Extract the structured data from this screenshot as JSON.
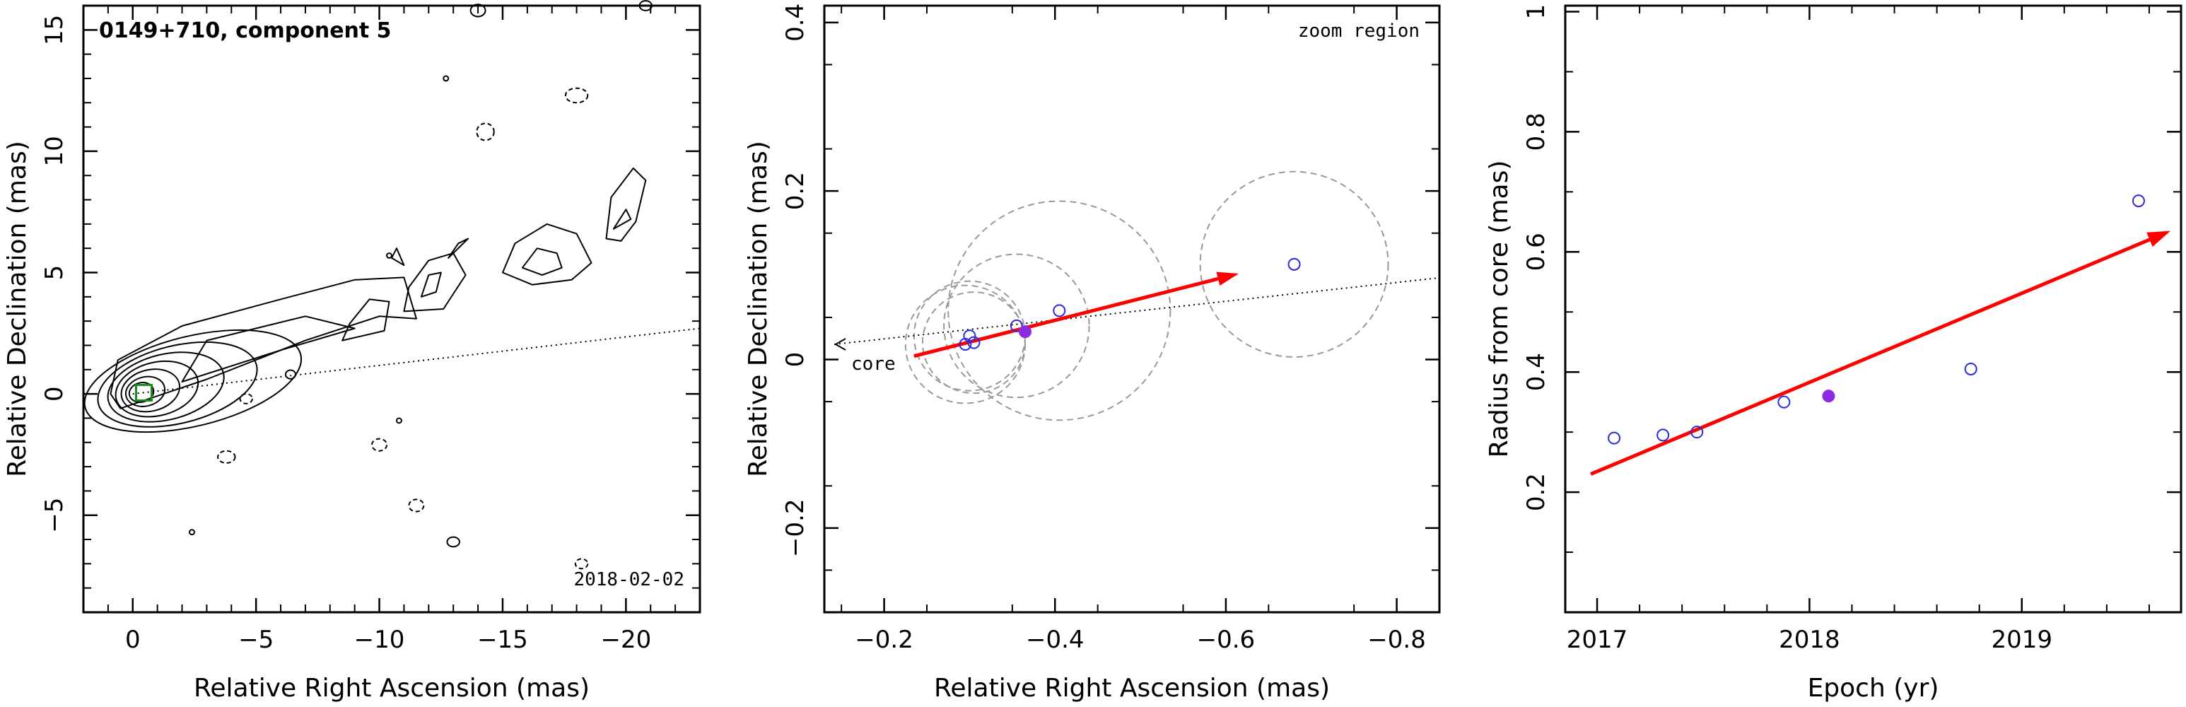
{
  "chart_data": [
    {
      "type": "scatter",
      "panel": "contour-map",
      "title": "0149+710, component 5",
      "annotation": "2018-02-02",
      "xlabel": "Relative Right Ascension (mas)",
      "ylabel": "Relative Declination (mas)",
      "xlim": [
        2,
        -23
      ],
      "ylim": [
        -9,
        16
      ],
      "xticks": [
        0,
        -5,
        -10,
        -15,
        -20
      ],
      "xtick_labels": [
        "0",
        "−5",
        "−10",
        "−15",
        "−20"
      ],
      "yticks": [
        -5,
        0,
        5,
        10,
        15
      ],
      "ytick_labels": [
        "−5",
        "0",
        "5",
        "10",
        "15"
      ],
      "trajectory_line": {
        "from": [
          0,
          0
        ],
        "to": [
          -23,
          2.7
        ],
        "style": "dotted"
      },
      "marker": {
        "x": -0.45,
        "y": 0.05,
        "shape": "square",
        "color": "#1a8a1a"
      },
      "colors": {
        "contour": "#000000",
        "marker": "#1a8a1a"
      }
    },
    {
      "type": "scatter",
      "panel": "zoom",
      "annotation": "zoom region",
      "core_label": "core",
      "xlabel": "Relative Right Ascension (mas)",
      "ylabel": "Relative Declination (mas)",
      "xlim": [
        -0.13,
        -0.85
      ],
      "ylim": [
        -0.3,
        0.42
      ],
      "xticks": [
        -0.2,
        -0.4,
        -0.6,
        -0.8
      ],
      "xtick_labels": [
        "−0.2",
        "−0.4",
        "−0.6",
        "−0.8"
      ],
      "yticks": [
        -0.2,
        0,
        0.2,
        0.4
      ],
      "ytick_labels": [
        "−0.2",
        "0",
        "0.2",
        "0.4"
      ],
      "points_open": [
        {
          "x": -0.295,
          "y": 0.018,
          "r": 0.07
        },
        {
          "x": -0.3,
          "y": 0.028,
          "r": 0.065
        },
        {
          "x": -0.305,
          "y": 0.02,
          "r": 0.06
        },
        {
          "x": -0.355,
          "y": 0.04,
          "r": 0.085
        },
        {
          "x": -0.405,
          "y": 0.058,
          "r": 0.13
        },
        {
          "x": -0.68,
          "y": 0.113,
          "r": 0.11
        }
      ],
      "point_filled": {
        "x": -0.365,
        "y": 0.033
      },
      "arrow": {
        "from": [
          -0.235,
          0.004
        ],
        "to": [
          -0.615,
          0.102
        ]
      },
      "trajectory_line": {
        "from": [
          -0.13,
          0.018
        ],
        "to": [
          -0.85,
          0.097
        ],
        "style": "dotted"
      },
      "colors": {
        "open": "#2a2ae0",
        "filled": "#8a2be2",
        "arrow": "#ff0000",
        "circle": "#999999"
      }
    },
    {
      "type": "scatter",
      "panel": "radius-epoch",
      "xlabel": "Epoch (yr)",
      "ylabel": "Radius from core (mas)",
      "xlim": [
        2016.85,
        2019.75
      ],
      "ylim": [
        0,
        1.01
      ],
      "xticks": [
        2017,
        2018,
        2019
      ],
      "xtick_labels": [
        "2017",
        "2018",
        "2019"
      ],
      "yticks": [
        0.2,
        0.4,
        0.6,
        0.8,
        1.0
      ],
      "ytick_labels": [
        "0.2",
        "0.4",
        "0.6",
        "0.8",
        "1"
      ],
      "points_open": [
        {
          "x": 2017.08,
          "y": 0.29
        },
        {
          "x": 2017.31,
          "y": 0.295
        },
        {
          "x": 2017.47,
          "y": 0.3
        },
        {
          "x": 2017.88,
          "y": 0.35
        },
        {
          "x": 2018.76,
          "y": 0.405
        },
        {
          "x": 2019.55,
          "y": 0.685
        }
      ],
      "point_filled": {
        "x": 2018.09,
        "y": 0.36
      },
      "arrow": {
        "from": [
          2016.97,
          0.23
        ],
        "to": [
          2019.7,
          0.635
        ]
      },
      "colors": {
        "open": "#2a2ae0",
        "filled": "#8a2be2",
        "arrow": "#ff0000"
      }
    }
  ]
}
